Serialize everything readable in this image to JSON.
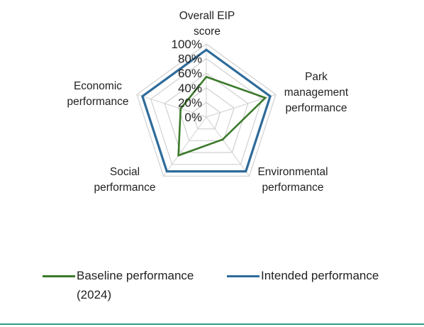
{
  "chart_data": {
    "type": "radar",
    "categories": [
      "Overall EIP score",
      "Park management performance",
      "Environmental performance",
      "Social performance",
      "Economic performance"
    ],
    "category_label_lines": [
      [
        "Overall EIP",
        "score"
      ],
      [
        "Park",
        "management",
        "performance"
      ],
      [
        "Environmental",
        "performance"
      ],
      [
        "Social",
        "performance"
      ],
      [
        "Economic",
        "performance"
      ]
    ],
    "rlim": [
      0,
      100
    ],
    "tick_labels": [
      "0%",
      "20%",
      "40%",
      "60%",
      "80%",
      "100%"
    ],
    "tick_values": [
      0,
      20,
      40,
      60,
      80,
      100
    ],
    "grid": true,
    "legend_position": "bottom",
    "series": [
      {
        "name": "Baseline performance (2024)",
        "color": "#3a7a2a",
        "values": [
          55,
          85,
          38,
          65,
          37
        ]
      },
      {
        "name": "Intended performance",
        "color": "#2e6b9a",
        "values": [
          92,
          92,
          92,
          92,
          92
        ]
      }
    ]
  },
  "colors": {
    "grid": "#d0d0d0",
    "text": "#222222",
    "bottom_rule": "#2e9e8c"
  }
}
